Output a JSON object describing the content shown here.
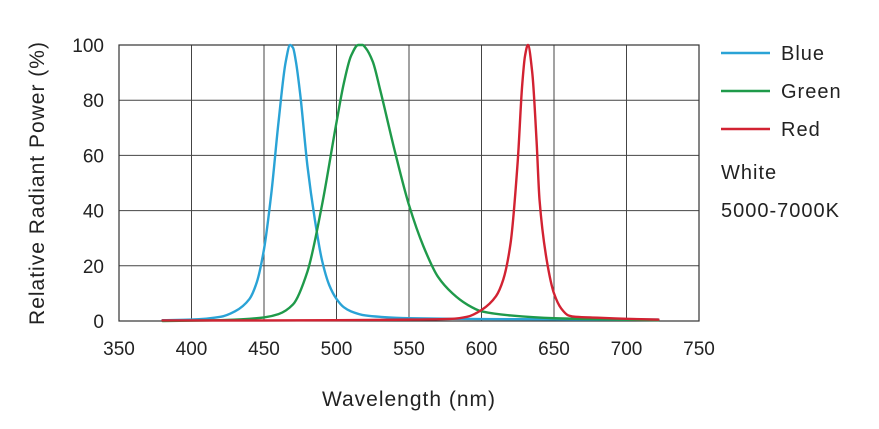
{
  "chart_data": {
    "type": "line",
    "xlabel": "Wavelength (nm)",
    "ylabel": "Relative Radiant Power (%)",
    "xlim": [
      350,
      750
    ],
    "ylim": [
      0,
      100
    ],
    "x_ticks": [
      350,
      400,
      450,
      500,
      550,
      600,
      650,
      700,
      750
    ],
    "y_ticks": [
      0,
      20,
      40,
      60,
      80,
      100
    ],
    "grid": true,
    "legend_position": "right",
    "series": [
      {
        "name": "Blue",
        "color": "#2aa3d6",
        "x": [
          380,
          400,
          420,
          430,
          440,
          445,
          450,
          455,
          460,
          465,
          468,
          470,
          472,
          475,
          480,
          485,
          490,
          495,
          500,
          505,
          510,
          520,
          530,
          550,
          600,
          650,
          700,
          722
        ],
        "y": [
          0.3,
          0.5,
          1.5,
          3.5,
          8,
          14,
          26,
          46,
          72,
          94,
          100,
          99,
          94,
          82,
          56,
          37,
          22,
          13,
          8,
          5,
          3.5,
          2,
          1.5,
          1.0,
          0.7,
          0.6,
          0.5,
          0.5
        ]
      },
      {
        "name": "Green",
        "color": "#1f9a4a",
        "x": [
          380,
          420,
          440,
          450,
          460,
          470,
          480,
          490,
          500,
          505,
          510,
          515,
          518,
          520,
          525,
          530,
          540,
          550,
          560,
          570,
          580,
          590,
          600,
          620,
          650,
          700,
          722
        ],
        "y": [
          0,
          0.3,
          0.8,
          1.3,
          2.5,
          6,
          18,
          42,
          72,
          86,
          96,
          100,
          100,
          99,
          94,
          84,
          62,
          42,
          27,
          16,
          10,
          6,
          3.5,
          2,
          1.0,
          0.5,
          0.3
        ]
      },
      {
        "name": "Red",
        "color": "#d22232",
        "x": [
          380,
          450,
          500,
          550,
          580,
          590,
          600,
          610,
          615,
          620,
          625,
          628,
          630,
          632,
          635,
          638,
          640,
          645,
          650,
          655,
          660,
          665,
          680,
          700,
          722
        ],
        "y": [
          0.2,
          0.2,
          0.3,
          0.5,
          0.8,
          1.5,
          4,
          9,
          15,
          28,
          58,
          85,
          96,
          100,
          90,
          65,
          44,
          22,
          10,
          4.5,
          2,
          1.5,
          1.2,
          0.8,
          0.5
        ]
      }
    ],
    "annotations": [
      "White",
      "5000-7000K"
    ]
  }
}
